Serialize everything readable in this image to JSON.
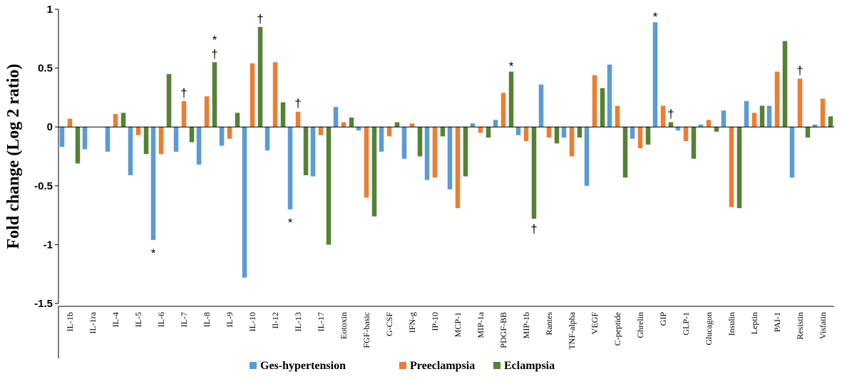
{
  "chart_data": {
    "type": "bar",
    "title": "",
    "xlabel": "",
    "ylabel": "Fold change (Log 2 ratio)",
    "ylim": [
      -1.5,
      1
    ],
    "yticks": [
      "-1.5",
      "-1",
      "-0.5",
      "0",
      "0.5",
      "1"
    ],
    "categories": [
      "IL-1b",
      "IL-1ra",
      "IL-4",
      "IL-5",
      "IL-6",
      "IL-7",
      "IL-8",
      "IL-9",
      "IL-10",
      "Il-12",
      "IL-13",
      "IL-17",
      "Eotoxin",
      "FGF-basic",
      "G-CSF",
      "IFN-g",
      "IP-10",
      "MCP-1",
      "MIP-1a",
      "PDGF-BB",
      "MIP-1b",
      "Rantes",
      "TNF-alpha",
      "VEGF",
      "C-peptide",
      "Ghrelin",
      "GIP",
      "GLP-1",
      "Glucagon",
      "Insulin",
      "Leptin",
      "PAI-1",
      "Resistin",
      "Visfatin"
    ],
    "series": [
      {
        "name": "Ges-hypertension",
        "color": "#5B9BD5",
        "values": [
          -0.17,
          -0.19,
          -0.21,
          -0.41,
          -0.96,
          -0.21,
          -0.32,
          -0.16,
          -1.28,
          -0.2,
          -0.7,
          -0.42,
          0.17,
          -0.03,
          -0.21,
          -0.27,
          -0.45,
          -0.53,
          0.03,
          0.06,
          -0.07,
          0.36,
          -0.09,
          -0.5,
          0.53,
          -0.1,
          0.89,
          -0.03,
          0.02,
          0.14,
          0.22,
          0.18,
          -0.43,
          0.02
        ]
      },
      {
        "name": "Preeclampsia",
        "color": "#ED7D31",
        "values": [
          0.07,
          0.0,
          0.11,
          -0.07,
          -0.23,
          0.22,
          0.26,
          -0.1,
          0.54,
          0.55,
          0.13,
          -0.07,
          0.04,
          -0.6,
          -0.08,
          0.03,
          -0.43,
          -0.69,
          -0.05,
          0.29,
          -0.12,
          -0.09,
          -0.25,
          0.44,
          0.18,
          -0.18,
          0.18,
          -0.12,
          0.06,
          -0.68,
          0.12,
          0.47,
          0.41,
          0.24
        ]
      },
      {
        "name": "Eclampsia",
        "color": "#548235",
        "values": [
          -0.31,
          0.0,
          0.12,
          -0.23,
          0.45,
          -0.13,
          0.55,
          0.12,
          0.85,
          0.21,
          -0.41,
          -1.0,
          0.08,
          -0.76,
          0.04,
          -0.25,
          -0.08,
          -0.42,
          -0.09,
          0.47,
          -0.78,
          -0.14,
          -0.09,
          0.33,
          -0.43,
          -0.15,
          0.04,
          -0.27,
          -0.04,
          -0.69,
          0.18,
          0.73,
          -0.09,
          0.09
        ]
      }
    ],
    "annotations": [
      {
        "text": "*",
        "category": "IL-6",
        "series": 0,
        "position": "below"
      },
      {
        "text": "†",
        "category": "IL-7",
        "series": 1,
        "position": "above"
      },
      {
        "text": "†",
        "category": "IL-8",
        "series": 2,
        "position": "above"
      },
      {
        "text": "*",
        "category": "IL-8",
        "series": 2,
        "position": "above2"
      },
      {
        "text": "†",
        "category": "IL-10",
        "series": 2,
        "position": "above"
      },
      {
        "text": "†",
        "category": "IL-13",
        "series": 1,
        "position": "above"
      },
      {
        "text": "*",
        "category": "IL-13",
        "series": 0,
        "position": "below"
      },
      {
        "text": "*",
        "category": "PDGF-BB",
        "series": 2,
        "position": "above"
      },
      {
        "text": "†",
        "category": "MIP-1b",
        "series": 2,
        "position": "below"
      },
      {
        "text": "*",
        "category": "GIP",
        "series": 0,
        "position": "above"
      },
      {
        "text": "†",
        "category": "GIP",
        "series": 2,
        "position": "above"
      },
      {
        "text": "†",
        "category": "Resistin",
        "series": 1,
        "position": "above"
      }
    ],
    "legend_position": "bottom",
    "grid": false
  }
}
